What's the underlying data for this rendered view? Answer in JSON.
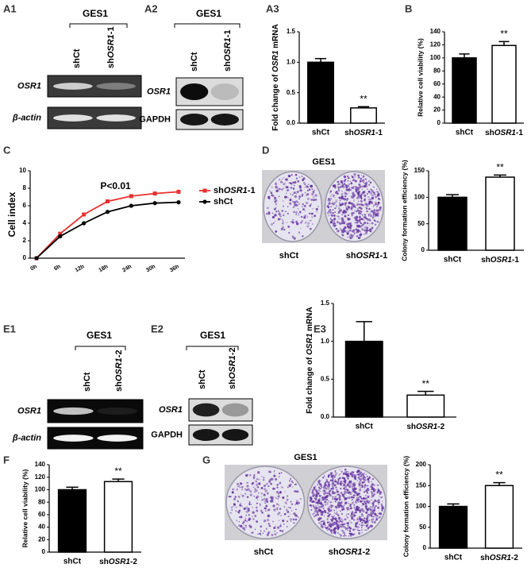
{
  "panel_labels": [
    "A1",
    "A2",
    "A3",
    "B",
    "C",
    "D",
    "E1",
    "E2",
    "E3",
    "F",
    "G"
  ],
  "gels": [
    {
      "title": "GES1",
      "lanes": [
        "shCt",
        "shOSR1-1"
      ],
      "rows": [
        "OSR1",
        "β-actin"
      ]
    },
    {
      "title": "GES1",
      "lanes": [
        "shCt",
        "shOSR1-1"
      ],
      "rows": [
        "OSR1",
        "GAPDH"
      ]
    },
    {
      "title": "GES1",
      "lanes": [
        "shCt",
        "shOSR1-2"
      ],
      "rows": [
        "OSR1",
        "β-actin"
      ]
    },
    {
      "title": "GES1",
      "lanes": [
        "shCt",
        "shOSR1-2"
      ],
      "rows": [
        "OSR1",
        "GAPDH"
      ]
    }
  ],
  "plates": [
    {
      "title": "GES1",
      "labels": [
        "shCt",
        "shOSR1-1"
      ]
    },
    {
      "title": "GES1",
      "labels": [
        "shCt",
        "shOSR1-2"
      ]
    }
  ],
  "chart_data": [
    {
      "type": "bar",
      "ylabel": "Fold change of OSR1 mRNA",
      "categories": [
        "shCt",
        "shOSR1-1"
      ],
      "values": [
        1.0,
        0.25
      ],
      "errors": [
        0.06,
        0.02
      ],
      "colors": [
        "#000000",
        "#ffffff"
      ],
      "ylim": [
        0,
        1.5
      ],
      "yticks": [
        {
          "value": 0,
          "label": "0.0"
        },
        {
          "value": 0.5,
          "label": "0.5"
        },
        {
          "value": 1,
          "label": "1.0"
        },
        {
          "value": 1.5,
          "label": "1.5"
        }
      ],
      "annotation": "**"
    },
    {
      "type": "bar",
      "ylabel": "Relative cell viability (%)",
      "categories": [
        "shCt",
        "shOSR1-1"
      ],
      "values": [
        100,
        119
      ],
      "errors": [
        6,
        6
      ],
      "colors": [
        "#000000",
        "#ffffff"
      ],
      "ylim": [
        0,
        140
      ],
      "yticks": [
        0,
        20,
        40,
        60,
        80,
        100,
        120,
        140
      ],
      "annotation": "**"
    },
    {
      "type": "line",
      "ylabel": "Cell index",
      "categories": [
        "0h",
        "6h",
        "12h",
        "18h",
        "24h",
        "30h",
        "36h"
      ],
      "series": [
        {
          "name": "shOSR1-1",
          "color": "#e8312f",
          "values": [
            0,
            2.8,
            5.0,
            6.5,
            7.1,
            7.4,
            7.6
          ]
        },
        {
          "name": "shCt",
          "color": "#000000",
          "values": [
            0,
            2.5,
            4.0,
            5.3,
            6.0,
            6.3,
            6.4
          ]
        }
      ],
      "ylim": [
        0,
        10
      ],
      "yticks": [
        0,
        2,
        4,
        6,
        8,
        10
      ],
      "annotation": "P<0.01"
    },
    {
      "type": "bar",
      "ylabel": "Colony formation efficiency (%)",
      "categories": [
        "shCt",
        "shOSR1-1"
      ],
      "values": [
        100,
        138
      ],
      "errors": [
        5,
        4
      ],
      "colors": [
        "#000000",
        "#ffffff"
      ],
      "ylim": [
        0,
        150
      ],
      "yticks": [
        0,
        50,
        100,
        150
      ],
      "annotation": "**"
    },
    {
      "type": "bar",
      "ylabel": "Fold change of OSR1 mRNA",
      "categories": [
        "shCt",
        "shOSR1-2"
      ],
      "values": [
        1.0,
        0.29
      ],
      "errors": [
        0.26,
        0.05
      ],
      "colors": [
        "#000000",
        "#ffffff"
      ],
      "ylim": [
        0,
        1.5
      ],
      "yticks": [
        {
          "value": 0,
          "label": "0.0"
        },
        {
          "value": 0.5,
          "label": "0.5"
        },
        {
          "value": 1,
          "label": "1.0"
        },
        {
          "value": 1.5,
          "label": "1.5"
        }
      ],
      "annotation": "**"
    },
    {
      "type": "bar",
      "ylabel": "Relative cell viability (%)",
      "categories": [
        "shCt",
        "shOSR1-2"
      ],
      "values": [
        100,
        113
      ],
      "errors": [
        4,
        4
      ],
      "colors": [
        "#000000",
        "#ffffff"
      ],
      "ylim": [
        0,
        140
      ],
      "yticks": [
        0,
        20,
        40,
        60,
        80,
        100,
        120,
        140
      ],
      "annotation": "**"
    },
    {
      "type": "bar",
      "ylabel": "Colony formation efficiency (%)",
      "categories": [
        "shCt",
        "shOSR1-2"
      ],
      "values": [
        100,
        150
      ],
      "errors": [
        6,
        7
      ],
      "colors": [
        "#000000",
        "#ffffff"
      ],
      "ylim": [
        0,
        200
      ],
      "yticks": [
        0,
        50,
        100,
        150,
        200
      ],
      "annotation": "**"
    }
  ]
}
